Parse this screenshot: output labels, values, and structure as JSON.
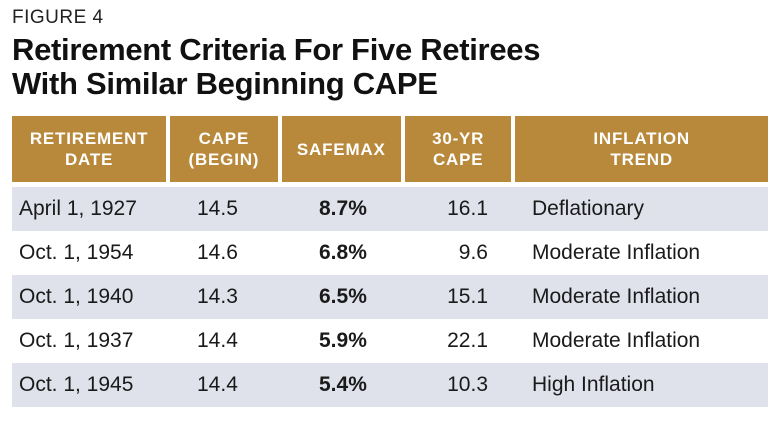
{
  "figure_label": "FIGURE 4",
  "title_line1": "Retirement Criteria For Five Retirees",
  "title_line2": "With Similar Beginning CAPE",
  "header_color": "#b8893a",
  "row_shade_color": "#dfe2eb",
  "columns": [
    {
      "line1": "RETIREMENT",
      "line2": "DATE"
    },
    {
      "line1": "CAPE",
      "line2": "(BEGIN)"
    },
    {
      "line1": "SAFEMAX",
      "line2": ""
    },
    {
      "line1": "30-YR",
      "line2": "CAPE"
    },
    {
      "line1": "INFLATION",
      "line2": "TREND"
    }
  ],
  "rows": [
    {
      "date": "April 1, 1927",
      "cape_begin": "14.5",
      "safemax": "8.7%",
      "cape_30yr": "16.1",
      "inflation": "Deflationary"
    },
    {
      "date": "Oct. 1, 1954",
      "cape_begin": "14.6",
      "safemax": "6.8%",
      "cape_30yr": "9.6",
      "inflation": "Moderate Inflation"
    },
    {
      "date": "Oct. 1, 1940",
      "cape_begin": "14.3",
      "safemax": "6.5%",
      "cape_30yr": "15.1",
      "inflation": "Moderate Inflation"
    },
    {
      "date": "Oct. 1, 1937",
      "cape_begin": "14.4",
      "safemax": "5.9%",
      "cape_30yr": "22.1",
      "inflation": "Moderate Inflation"
    },
    {
      "date": "Oct. 1, 1945",
      "cape_begin": "14.4",
      "safemax": "5.4%",
      "cape_30yr": "10.3",
      "inflation": "High Inflation"
    }
  ]
}
